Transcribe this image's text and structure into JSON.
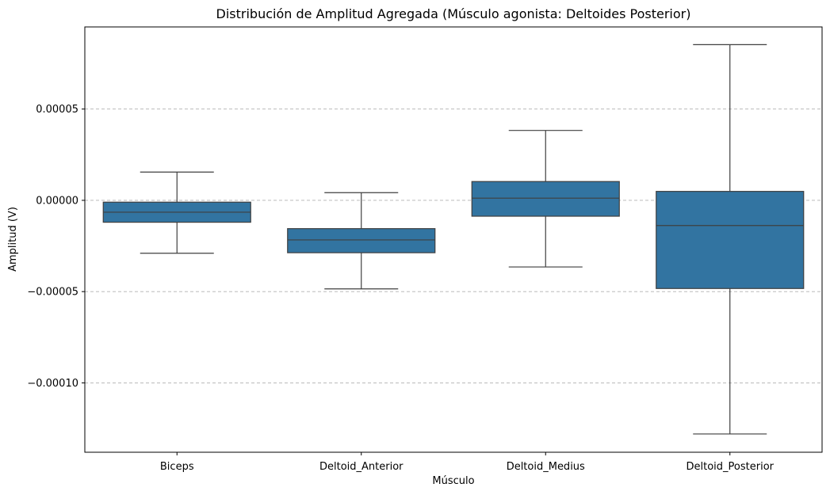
{
  "chart_data": {
    "type": "box",
    "title": "Distribución de Amplitud Agregada (Músculo agonista: Deltoides Posterior)",
    "xlabel": "Músculo",
    "ylabel": "Amplitud (V)",
    "categories": [
      "Biceps",
      "Deltoid_Anterior",
      "Deltoid_Medius",
      "Deltoid_Posterior"
    ],
    "boxes": [
      {
        "name": "Biceps",
        "whisker_low": -2.9e-05,
        "q1": -1.2e-05,
        "median": -6.5e-06,
        "q3": -1e-06,
        "whisker_high": 1.55e-05
      },
      {
        "name": "Deltoid_Anterior",
        "whisker_low": -4.85e-05,
        "q1": -2.87e-05,
        "median": -2.17e-05,
        "q3": -1.55e-05,
        "whisker_high": 4.2e-06
      },
      {
        "name": "Deltoid_Medius",
        "whisker_low": -3.65e-05,
        "q1": -8.7e-06,
        "median": 1.2e-06,
        "q3": 1.03e-05,
        "whisker_high": 3.83e-05
      },
      {
        "name": "Deltoid_Posterior",
        "whisker_low": -0.000128,
        "q1": -4.83e-05,
        "median": -1.38e-05,
        "q3": 4.9e-06,
        "whisker_high": 8.53e-05
      }
    ],
    "yticks": [
      5e-05,
      0.0,
      -5e-05,
      -0.0001
    ],
    "ytick_labels": [
      "0.00005",
      "0.00000",
      "−0.00005",
      "−0.00010"
    ],
    "ylim": [
      -0.000138,
      9.5e-05
    ],
    "grid": "y",
    "legend": "none",
    "box_color": "#3274a1",
    "line_color": "#3f3f3f",
    "grid_color": "#b0b0b0"
  }
}
